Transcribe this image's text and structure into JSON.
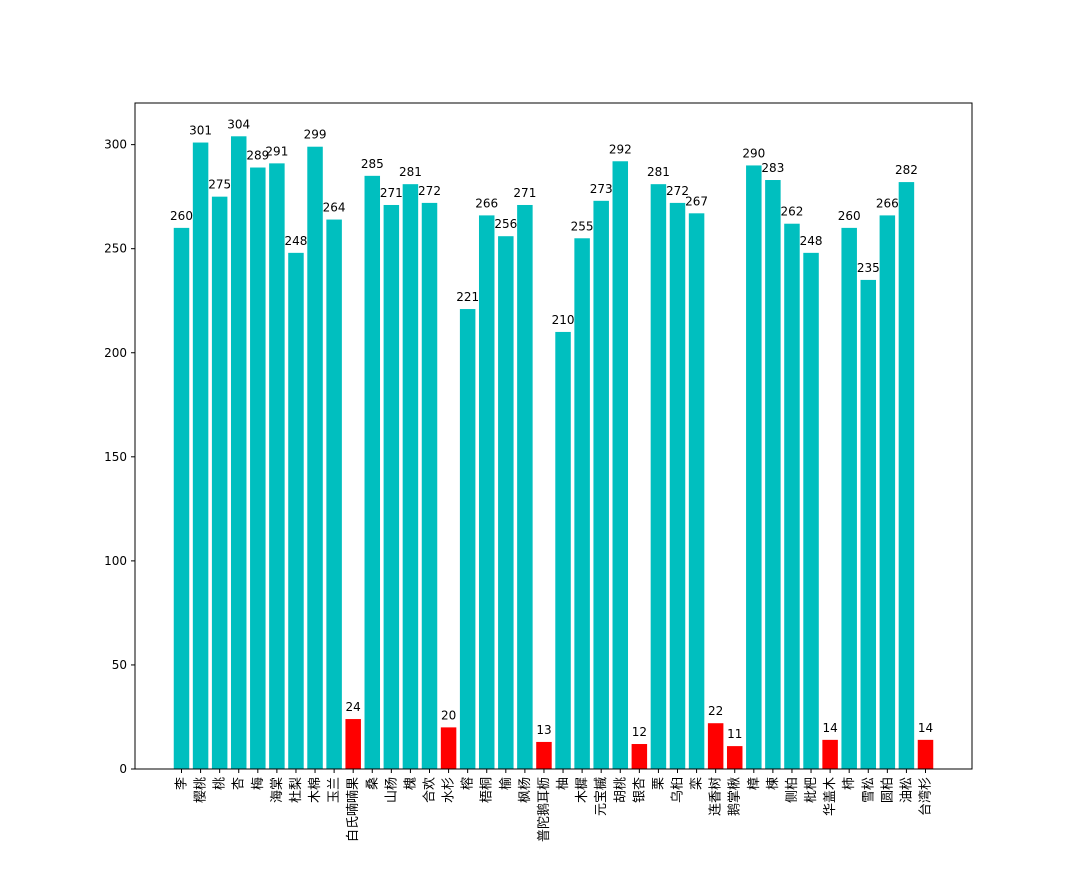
{
  "chart_data": {
    "type": "bar",
    "title": "",
    "xlabel": "",
    "ylabel": "",
    "ylim": [
      0,
      320
    ],
    "yticks": [
      0,
      50,
      100,
      150,
      200,
      250,
      300
    ],
    "grid": false,
    "colors": {
      "normal": "#00bfbf",
      "highlight": "#ff0000",
      "axis": "#000000",
      "background": "#ffffff"
    },
    "categories": [
      "李",
      "樱桃",
      "桃",
      "杏",
      "梅",
      "海棠",
      "杜梨",
      "木棉",
      "玉兰",
      "白氏喃喃果",
      "桑",
      "山杨",
      "槐",
      "合欢",
      "水杉",
      "榕",
      "梧桐",
      "榆",
      "枫杨",
      "普陀鹅耳枥",
      "柚",
      "木樨",
      "元宝槭",
      "胡桃",
      "银杏",
      "栗",
      "乌桕",
      "栾",
      "连香树",
      "鹅掌楸",
      "樟",
      "楝",
      "侧柏",
      "枇杷",
      "华盖木",
      "柿",
      "雪松",
      "圆柏",
      "油松",
      "台湾杉"
    ],
    "values": [
      260,
      301,
      275,
      304,
      289,
      291,
      248,
      299,
      264,
      24,
      285,
      271,
      281,
      272,
      20,
      221,
      266,
      256,
      271,
      13,
      210,
      255,
      273,
      292,
      12,
      281,
      272,
      267,
      22,
      11,
      290,
      283,
      262,
      248,
      14,
      260,
      235,
      266,
      282,
      14
    ],
    "highlight": [
      false,
      false,
      false,
      false,
      false,
      false,
      false,
      false,
      false,
      true,
      false,
      false,
      false,
      false,
      true,
      false,
      false,
      false,
      false,
      true,
      false,
      false,
      false,
      false,
      true,
      false,
      false,
      false,
      true,
      true,
      false,
      false,
      false,
      false,
      true,
      false,
      false,
      false,
      false,
      true
    ]
  }
}
